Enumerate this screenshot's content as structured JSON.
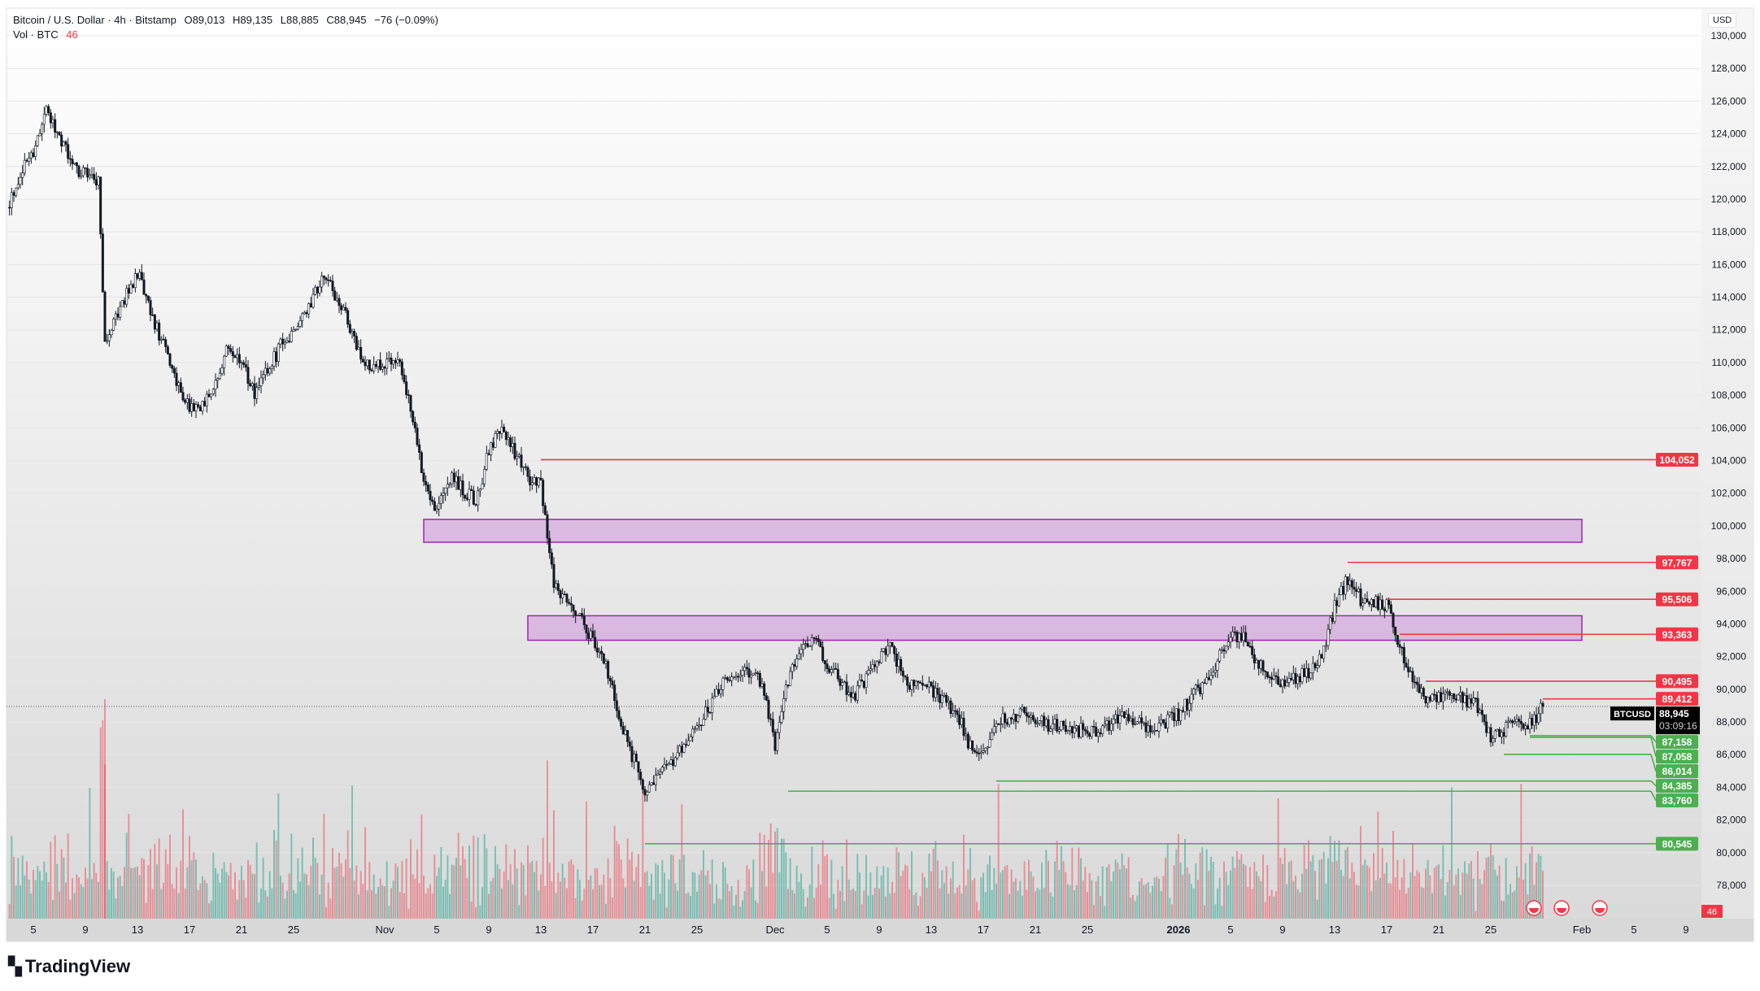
{
  "header": {
    "symbol_line": "Bitcoin / U.S. Dollar · 4h · Bitstamp",
    "open": "O89,013",
    "high": "H89,135",
    "low": "L88,885",
    "close": "C88,945",
    "change": "−76 (−0.09%)",
    "vol_label": "Vol · BTC",
    "vol_value": "46"
  },
  "currency": "USD",
  "current": {
    "symbol": "BTCUSD",
    "price": "88,945",
    "countdown": "03:09:16",
    "value": 88945
  },
  "volume_badge": "46",
  "brand": "TradingView",
  "price_ticks": [
    "78,000",
    "80,000",
    "82,000",
    "84,000",
    "86,000",
    "88,000",
    "90,000",
    "92,000",
    "94,000",
    "96,000",
    "98,000",
    "100,000",
    "102,000",
    "104,000",
    "106,000",
    "108,000",
    "110,000",
    "112,000",
    "114,000",
    "116,000",
    "118,000",
    "120,000",
    "122,000",
    "124,000",
    "126,000",
    "128,000",
    "130,000"
  ],
  "time_ticks": [
    {
      "label": "5",
      "day": 0
    },
    {
      "label": "9",
      "day": 4
    },
    {
      "label": "13",
      "day": 8
    },
    {
      "label": "17",
      "day": 12
    },
    {
      "label": "21",
      "day": 16
    },
    {
      "label": "25",
      "day": 20
    },
    {
      "label": "Nov",
      "day": 27
    },
    {
      "label": "5",
      "day": 31
    },
    {
      "label": "9",
      "day": 35
    },
    {
      "label": "13",
      "day": 39
    },
    {
      "label": "17",
      "day": 43
    },
    {
      "label": "21",
      "day": 47
    },
    {
      "label": "25",
      "day": 51
    },
    {
      "label": "Dec",
      "day": 57
    },
    {
      "label": "5",
      "day": 61
    },
    {
      "label": "9",
      "day": 65
    },
    {
      "label": "13",
      "day": 69
    },
    {
      "label": "17",
      "day": 73
    },
    {
      "label": "21",
      "day": 77
    },
    {
      "label": "25",
      "day": 81
    },
    {
      "label": "2026",
      "day": 88
    },
    {
      "label": "5",
      "day": 92
    },
    {
      "label": "9",
      "day": 96
    },
    {
      "label": "13",
      "day": 100
    },
    {
      "label": "17",
      "day": 104
    },
    {
      "label": "21",
      "day": 108
    },
    {
      "label": "25",
      "day": 112
    },
    {
      "label": "Feb",
      "day": 119
    },
    {
      "label": "5",
      "day": 123
    },
    {
      "label": "9",
      "day": 127
    }
  ],
  "levels": [
    {
      "label": "104,052",
      "value": 104052,
      "from_day": 39,
      "kind": "resistance"
    },
    {
      "label": "97,767",
      "value": 97767,
      "from_day": 101,
      "kind": "resistance"
    },
    {
      "label": "95,506",
      "value": 95506,
      "from_day": 104,
      "kind": "resistance"
    },
    {
      "label": "93,363",
      "value": 93363,
      "from_day": 105,
      "kind": "resistance"
    },
    {
      "label": "90,495",
      "value": 90495,
      "from_day": 107,
      "kind": "resistance"
    },
    {
      "label": "89,412",
      "value": 89412,
      "from_day": 116,
      "kind": "resistance"
    },
    {
      "label": "87,158",
      "value": 87158,
      "from_day": 115,
      "kind": "support"
    },
    {
      "label": "87,058",
      "value": 87058,
      "from_day": 115,
      "kind": "support"
    },
    {
      "label": "86,014",
      "value": 86014,
      "from_day": 113,
      "kind": "support"
    },
    {
      "label": "84,385",
      "value": 84385,
      "from_day": 74,
      "kind": "support"
    },
    {
      "label": "83,760",
      "value": 83760,
      "from_day": 58,
      "kind": "support"
    },
    {
      "label": "80,545",
      "value": 80545,
      "from_day": 47,
      "kind": "support"
    }
  ],
  "zones": [
    {
      "low": 99000,
      "high": 100400,
      "from_day": 30,
      "to_day": 119
    },
    {
      "low": 93000,
      "high": 94500,
      "from_day": 38,
      "to_day": 119
    }
  ],
  "colors": {
    "up": "#089981",
    "down": "#f23645",
    "resistance": "#f23645",
    "support": "#4caf50",
    "zone_fill": "#ce93d8",
    "zone_stroke": "#9c27b0",
    "candle": "#131722"
  },
  "chart_data": {
    "type": "candlestick",
    "interval": "4h",
    "ylim": [
      77000,
      131000
    ],
    "x_unit": "days since Oct 5",
    "waypoints": [
      [
        -2,
        119500
      ],
      [
        -1,
        121500
      ],
      [
        0,
        123000
      ],
      [
        1,
        125500
      ],
      [
        2,
        124000
      ],
      [
        3,
        122000
      ],
      [
        4,
        121500
      ],
      [
        5,
        121000
      ],
      [
        5.5,
        111000
      ],
      [
        6,
        112000
      ],
      [
        7,
        114000
      ],
      [
        8,
        115500
      ],
      [
        9,
        113000
      ],
      [
        10,
        111000
      ],
      [
        12,
        107000
      ],
      [
        13,
        107500
      ],
      [
        14,
        108500
      ],
      [
        15,
        111000
      ],
      [
        16,
        110000
      ],
      [
        17,
        108000
      ],
      [
        19,
        111000
      ],
      [
        21,
        113000
      ],
      [
        22,
        115000
      ],
      [
        23,
        114500
      ],
      [
        24,
        113000
      ],
      [
        25,
        110500
      ],
      [
        26,
        109500
      ],
      [
        27,
        110000
      ],
      [
        28,
        110500
      ],
      [
        29,
        107000
      ],
      [
        30,
        103000
      ],
      [
        31,
        101000
      ],
      [
        32,
        103000
      ],
      [
        34,
        101500
      ],
      [
        35,
        104500
      ],
      [
        36,
        106000
      ],
      [
        37,
        104500
      ],
      [
        38,
        103000
      ],
      [
        39,
        102500
      ],
      [
        40,
        96500
      ],
      [
        41,
        95500
      ],
      [
        42,
        94500
      ],
      [
        43,
        93000
      ],
      [
        44,
        91500
      ],
      [
        45,
        88500
      ],
      [
        46,
        86000
      ],
      [
        47,
        83500
      ],
      [
        48,
        84500
      ],
      [
        49,
        85500
      ],
      [
        51,
        87500
      ],
      [
        53,
        90500
      ],
      [
        55,
        91000
      ],
      [
        56,
        90500
      ],
      [
        57,
        86500
      ],
      [
        58,
        90500
      ],
      [
        59,
        92500
      ],
      [
        60,
        93000
      ],
      [
        61,
        91500
      ],
      [
        63,
        89500
      ],
      [
        65,
        92000
      ],
      [
        66,
        92500
      ],
      [
        67,
        90500
      ],
      [
        69,
        90000
      ],
      [
        71,
        88500
      ],
      [
        72,
        86500
      ],
      [
        73,
        86000
      ],
      [
        74,
        88000
      ],
      [
        76,
        88500
      ],
      [
        78,
        87800
      ],
      [
        80,
        87500
      ],
      [
        82,
        87500
      ],
      [
        84,
        88500
      ],
      [
        86,
        87500
      ],
      [
        88,
        88500
      ],
      [
        90,
        90500
      ],
      [
        92,
        93000
      ],
      [
        93,
        93500
      ],
      [
        94,
        91500
      ],
      [
        96,
        90500
      ],
      [
        98,
        91000
      ],
      [
        99,
        92000
      ],
      [
        100,
        95000
      ],
      [
        101,
        96800
      ],
      [
        102,
        95500
      ],
      [
        104,
        95200
      ],
      [
        105,
        92500
      ],
      [
        106,
        90500
      ],
      [
        107,
        89500
      ],
      [
        109,
        89500
      ],
      [
        110,
        89300
      ],
      [
        111,
        89000
      ],
      [
        112,
        87000
      ],
      [
        113,
        87500
      ],
      [
        114,
        88000
      ],
      [
        115,
        87800
      ],
      [
        116,
        88945
      ]
    ]
  }
}
